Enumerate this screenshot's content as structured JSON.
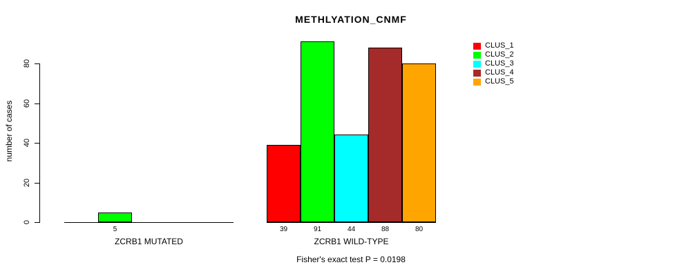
{
  "chart_data": {
    "type": "bar",
    "title": "METHLYATION_CNMF",
    "ylabel": "number of cases",
    "xlabel": "",
    "ylim": [
      0,
      80
    ],
    "yticks": [
      0,
      20,
      40,
      60,
      80
    ],
    "grid": false,
    "legend_position": "top-right",
    "categories": [
      "ZCRB1 MUTATED",
      "ZCRB1 WILD-TYPE"
    ],
    "series": [
      {
        "name": "CLUS_1",
        "color": "#FF0000",
        "values": [
          0,
          39
        ]
      },
      {
        "name": "CLUS_2",
        "color": "#00FF00",
        "values": [
          5,
          91
        ]
      },
      {
        "name": "CLUS_3",
        "color": "#00FFFF",
        "values": [
          0,
          44
        ]
      },
      {
        "name": "CLUS_4",
        "color": "#A52A2A",
        "values": [
          0,
          88
        ]
      },
      {
        "name": "CLUS_5",
        "color": "#FFA500",
        "values": [
          0,
          80
        ]
      }
    ],
    "value_labels": [
      [
        "",
        "5",
        "",
        "",
        ""
      ],
      [
        "39",
        "91",
        "44",
        "88",
        "80"
      ]
    ],
    "legend": {
      "entries": [
        {
          "label": "CLUS_1",
          "color": "#FF0000"
        },
        {
          "label": "CLUS_2",
          "color": "#00FF00"
        },
        {
          "label": "CLUS_3",
          "color": "#00FFFF"
        },
        {
          "label": "CLUS_4",
          "color": "#A52A2A"
        },
        {
          "label": "CLUS_5",
          "color": "#FFA500"
        }
      ]
    },
    "annotation": "Fisher's exact test P = 0.0198",
    "axis_color": "#000000",
    "bar_border_color": "#000000"
  }
}
